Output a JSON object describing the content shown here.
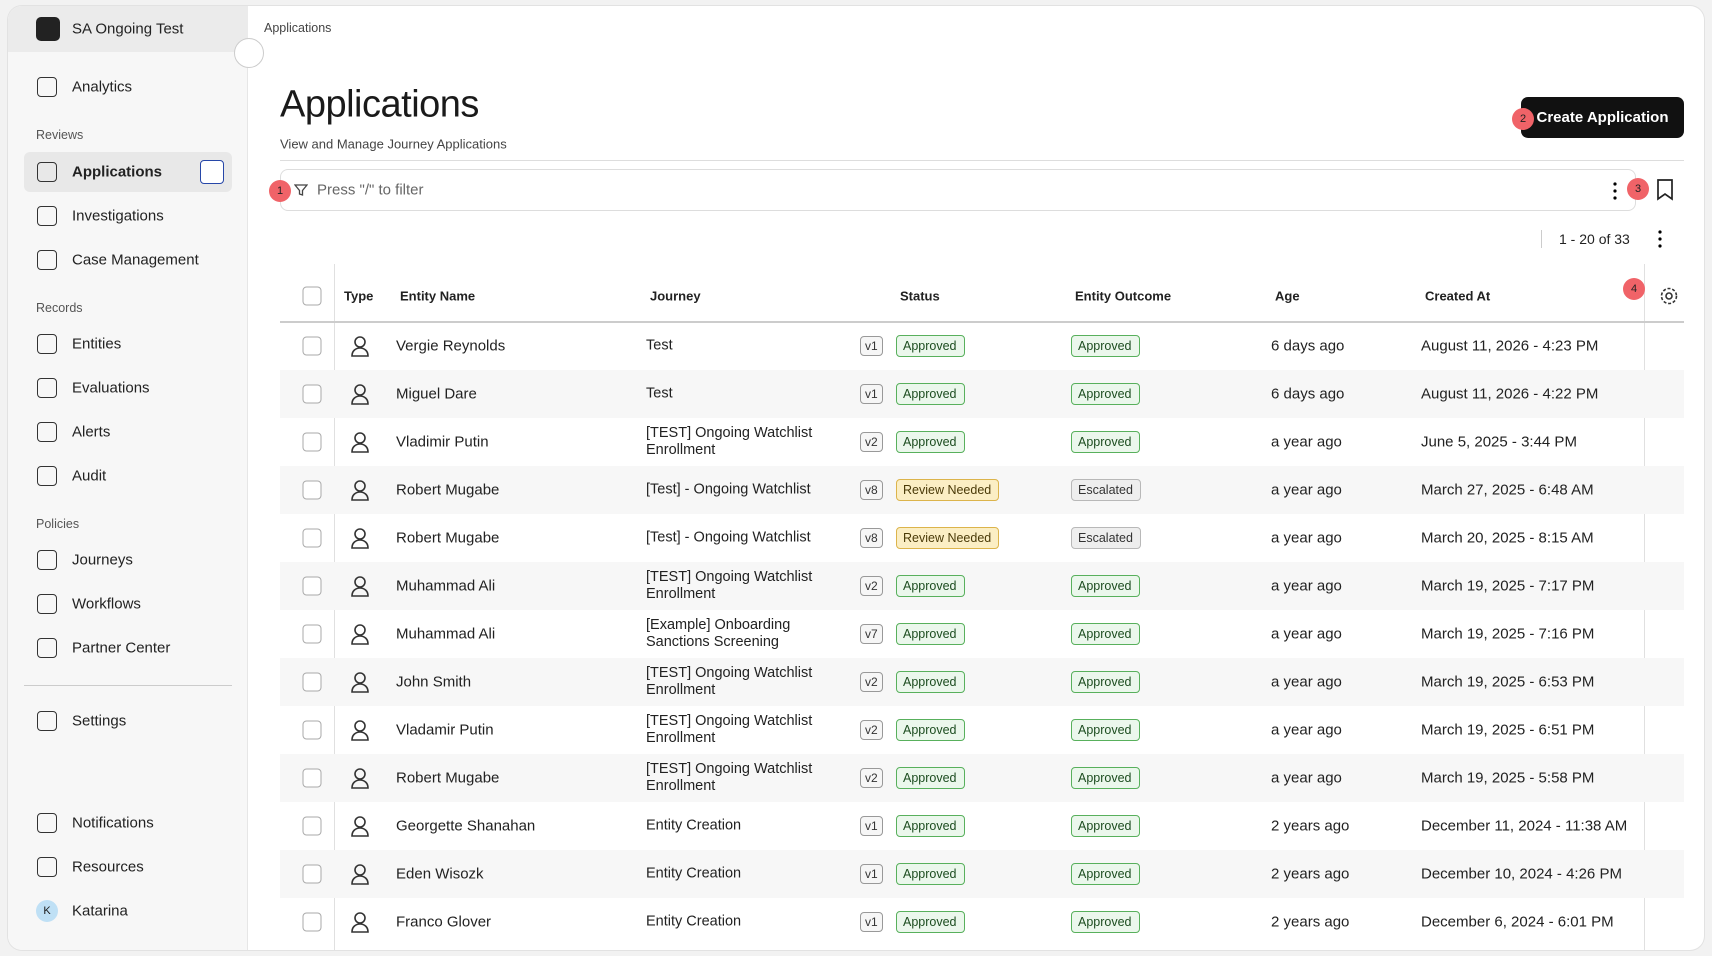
{
  "sidebar": {
    "workspace": "SA Ongoing Test",
    "top": [
      "Analytics"
    ],
    "sections": [
      {
        "title": "Reviews",
        "items": [
          "Applications",
          "Investigations",
          "Case Management"
        ]
      },
      {
        "title": "Records",
        "items": [
          "Entities",
          "Evaluations",
          "Alerts",
          "Audit"
        ]
      },
      {
        "title": "Policies",
        "items": [
          "Journeys",
          "Workflows",
          "Partner Center"
        ]
      }
    ],
    "settings": "Settings",
    "bottom": [
      "Notifications",
      "Resources"
    ],
    "user": {
      "initial": "K",
      "name": "Katarina"
    }
  },
  "breadcrumb": "Applications",
  "header": {
    "title": "Applications",
    "subtitle": "View and Manage Journey Applications",
    "button": "Create Application"
  },
  "filter": {
    "placeholder": "Press \"/\" to filter"
  },
  "pagination": "1 - 20 of 33",
  "markers": [
    "1",
    "2",
    "3",
    "4"
  ],
  "table": {
    "columns": [
      "Type",
      "Entity Name",
      "Journey",
      "Status",
      "Entity Outcome",
      "Age",
      "Created At"
    ],
    "rows": [
      [
        "Vergie Reynolds",
        "Test",
        "v1",
        "Approved",
        "Approved",
        "6 days ago",
        "August 11, 2026 - 4:23 PM"
      ],
      [
        "Miguel Dare",
        "Test",
        "v1",
        "Approved",
        "Approved",
        "6 days ago",
        "August 11, 2026 - 4:22 PM"
      ],
      [
        "Vladimir Putin",
        "[TEST] Ongoing Watchlist Enrollment",
        "v2",
        "Approved",
        "Approved",
        "a year ago",
        "June 5, 2025 - 3:44 PM"
      ],
      [
        "Robert Mugabe",
        "[Test] - Ongoing Watchlist",
        "v8",
        "Review Needed",
        "Escalated",
        "a year ago",
        "March 27, 2025 - 6:48 AM"
      ],
      [
        "Robert Mugabe",
        "[Test] - Ongoing Watchlist",
        "v8",
        "Review Needed",
        "Escalated",
        "a year ago",
        "March 20, 2025 - 8:15 AM"
      ],
      [
        "Muhammad Ali",
        "[TEST] Ongoing Watchlist Enrollment",
        "v2",
        "Approved",
        "Approved",
        "a year ago",
        "March 19, 2025 - 7:17 PM"
      ],
      [
        "Muhammad Ali",
        "[Example] Onboarding Sanctions Screening",
        "v7",
        "Approved",
        "Approved",
        "a year ago",
        "March 19, 2025 - 7:16 PM"
      ],
      [
        "John Smith",
        "[TEST] Ongoing Watchlist Enrollment",
        "v2",
        "Approved",
        "Approved",
        "a year ago",
        "March 19, 2025 - 6:53 PM"
      ],
      [
        "Vladamir Putin",
        "[TEST] Ongoing Watchlist Enrollment",
        "v2",
        "Approved",
        "Approved",
        "a year ago",
        "March 19, 2025 - 6:51 PM"
      ],
      [
        "Robert Mugabe",
        "[TEST] Ongoing Watchlist Enrollment",
        "v2",
        "Approved",
        "Approved",
        "a year ago",
        "March 19, 2025 - 5:58 PM"
      ],
      [
        "Georgette Shanahan",
        "Entity Creation",
        "v1",
        "Approved",
        "Approved",
        "2 years ago",
        "December 11, 2024 - 11:38 AM"
      ],
      [
        "Eden Wisozk",
        "Entity Creation",
        "v1",
        "Approved",
        "Approved",
        "2 years ago",
        "December 10, 2024 - 4:26 PM"
      ],
      [
        "Franco Glover",
        "Entity Creation",
        "v1",
        "Approved",
        "Approved",
        "2 years ago",
        "December 6, 2024 - 6:01 PM"
      ]
    ]
  }
}
